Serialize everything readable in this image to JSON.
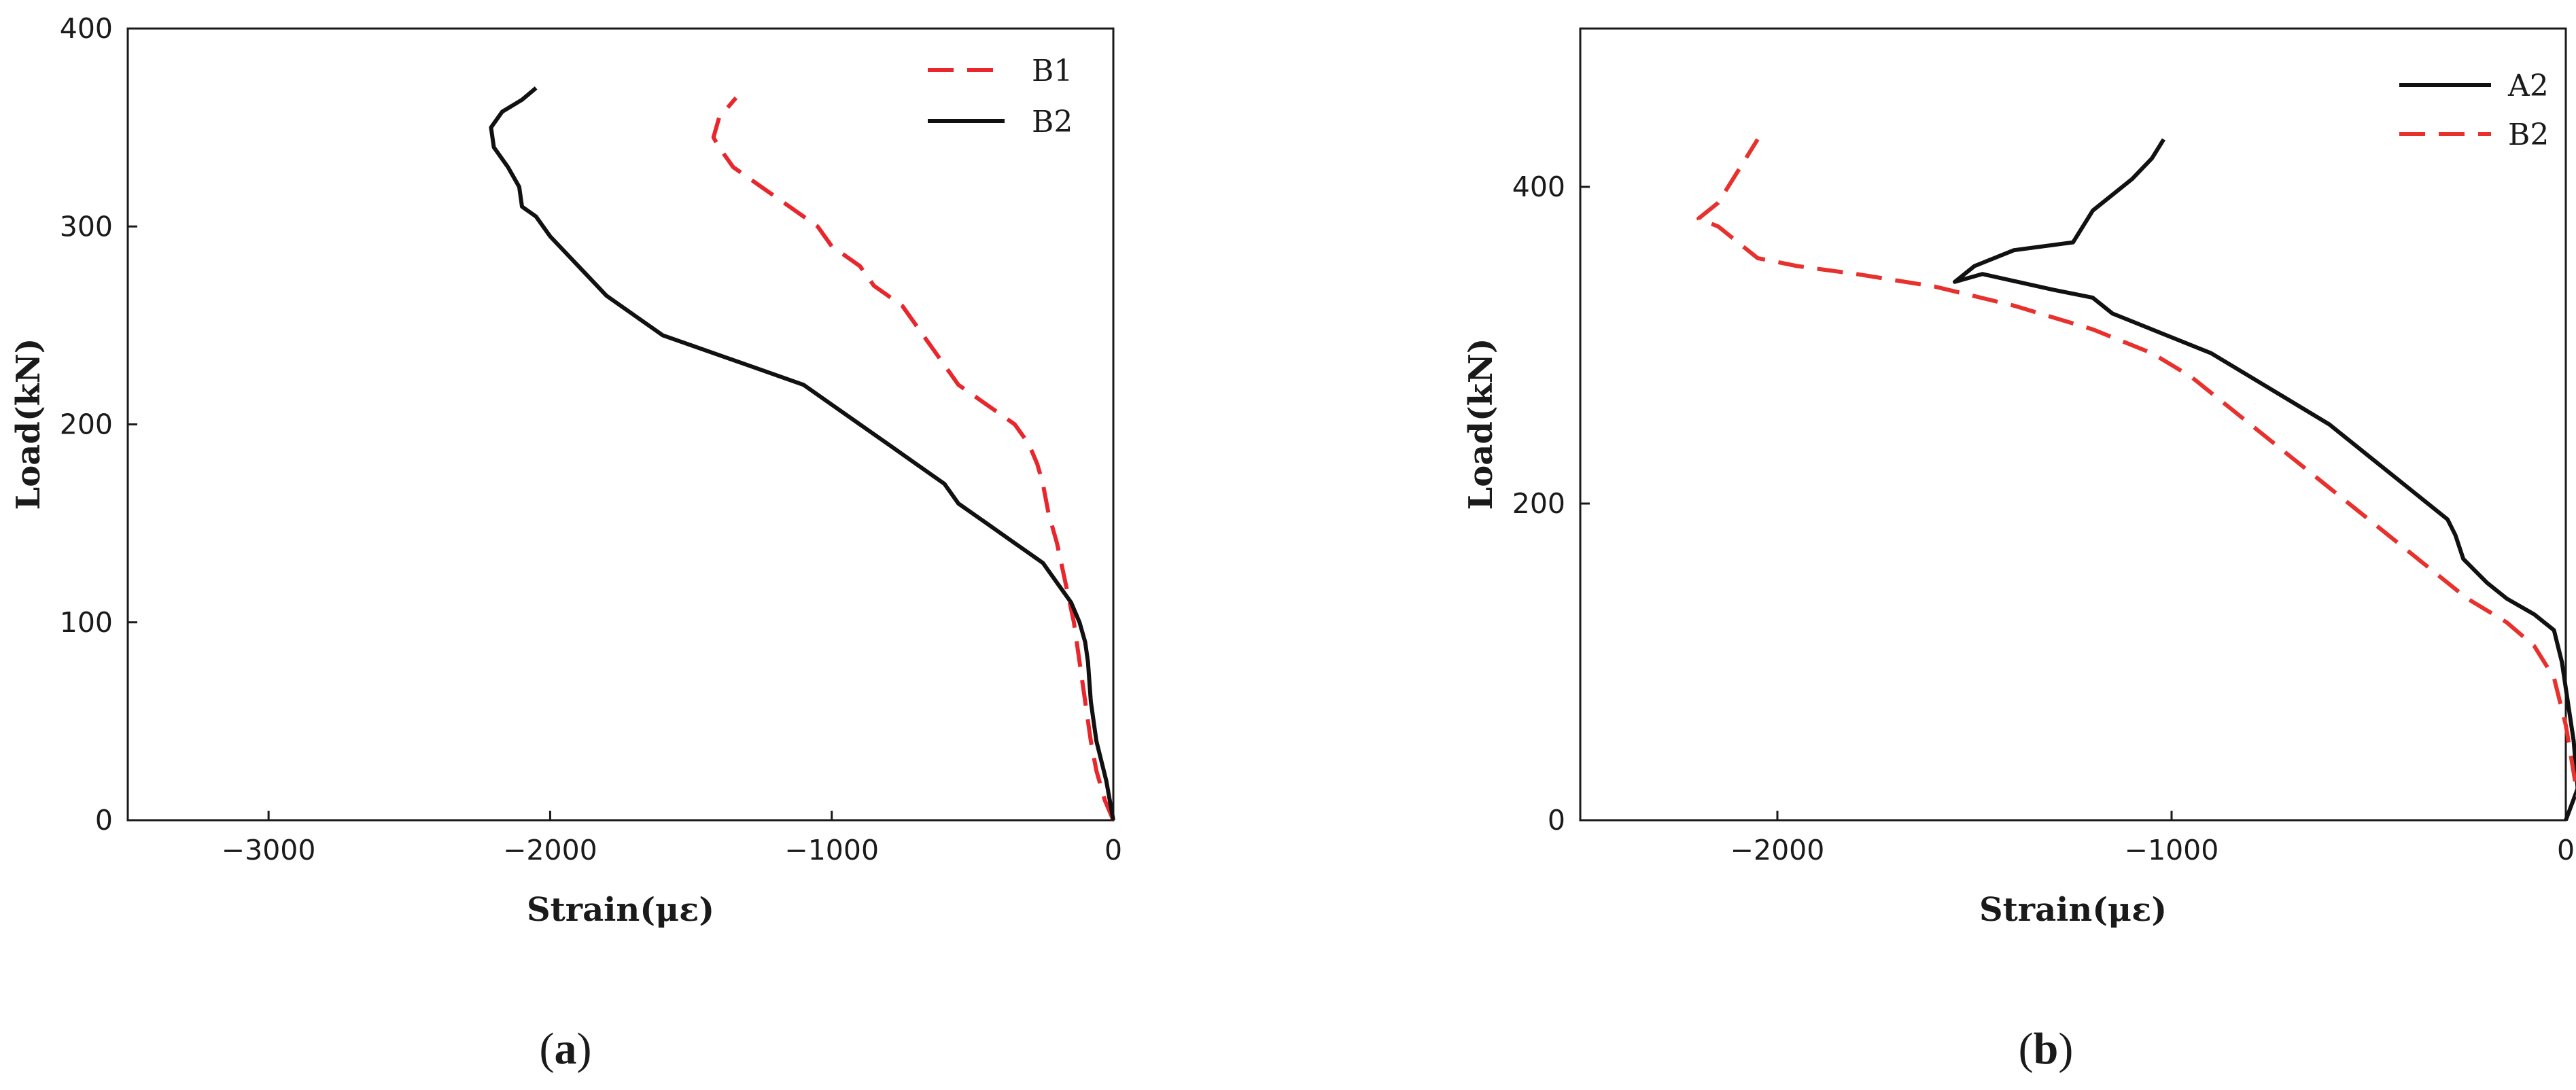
{
  "chart_data": [
    {
      "type": "line",
      "panel_label": "(a)",
      "panel_label_letter": "a",
      "xlabel": "Strain(με)",
      "ylabel": "Load(kN)",
      "xlim": [
        -3500,
        0
      ],
      "ylim": [
        0,
        400
      ],
      "xticks": [
        -3000,
        -2000,
        -1000,
        0
      ],
      "yticks": [
        0,
        100,
        200,
        300,
        400
      ],
      "grid": false,
      "legend_position": "top-right",
      "series": [
        {
          "name": "B1",
          "color": "#e8262c",
          "dash": "dashed",
          "x": [
            0,
            -30,
            -60,
            -80,
            -100,
            -120,
            -140,
            -170,
            -200,
            -230,
            -250,
            -270,
            -300,
            -350,
            -400,
            -450,
            -500,
            -550,
            -600,
            -650,
            -700,
            -750,
            -800,
            -850,
            -900,
            -950,
            -1000,
            -1050,
            -1100,
            -1150,
            -1200,
            -1250,
            -1300,
            -1350,
            -1400,
            -1420,
            -1400,
            -1370,
            -1340
          ],
          "y": [
            0,
            10,
            25,
            40,
            60,
            80,
            100,
            120,
            140,
            155,
            170,
            180,
            190,
            200,
            205,
            210,
            215,
            220,
            230,
            240,
            250,
            260,
            265,
            270,
            280,
            285,
            290,
            300,
            305,
            310,
            315,
            320,
            325,
            330,
            340,
            345,
            355,
            360,
            365
          ]
        },
        {
          "name": "B2",
          "color": "#111111",
          "dash": "solid",
          "x": [
            0,
            -25,
            -60,
            -80,
            -90,
            -100,
            -120,
            -150,
            -200,
            -250,
            -300,
            -350,
            -400,
            -450,
            -500,
            -550,
            -600,
            -700,
            -800,
            -900,
            -1000,
            -1100,
            -1200,
            -1300,
            -1400,
            -1500,
            -1600,
            -1700,
            -1800,
            -1900,
            -2000,
            -2050,
            -2100,
            -2110,
            -2150,
            -2200,
            -2210,
            -2170,
            -2100,
            -2050
          ],
          "y": [
            0,
            20,
            40,
            60,
            80,
            90,
            100,
            110,
            120,
            130,
            135,
            140,
            145,
            150,
            155,
            160,
            170,
            180,
            190,
            200,
            210,
            220,
            225,
            230,
            235,
            240,
            245,
            255,
            265,
            280,
            295,
            305,
            310,
            320,
            330,
            340,
            350,
            358,
            364,
            370
          ]
        }
      ]
    },
    {
      "type": "line",
      "panel_label": "(b)",
      "panel_label_letter": "b",
      "xlabel": "Strain(με)",
      "ylabel": "Load(kN)",
      "xlim": [
        -2500,
        0
      ],
      "ylim": [
        0,
        500
      ],
      "xticks": [
        -2000,
        -1000,
        0
      ],
      "yticks": [
        0,
        200,
        400
      ],
      "grid": false,
      "legend_position": "top-right",
      "series": [
        {
          "name": "A2",
          "color": "#111111",
          "dash": "solid",
          "x": [
            0,
            30,
            20,
            -10,
            -30,
            -80,
            -150,
            -200,
            -260,
            -280,
            -300,
            -350,
            -400,
            -500,
            -600,
            -700,
            -800,
            -900,
            -1000,
            -1100,
            -1150,
            -1200,
            -1300,
            -1480,
            -1550,
            -1500,
            -1400,
            -1250,
            -1200,
            -1150,
            -1100,
            -1050,
            -1020
          ],
          "y": [
            0,
            20,
            50,
            100,
            120,
            130,
            140,
            150,
            165,
            180,
            190,
            200,
            210,
            230,
            250,
            265,
            280,
            295,
            305,
            315,
            320,
            330,
            335,
            345,
            340,
            350,
            360,
            365,
            385,
            395,
            405,
            418,
            430
          ]
        },
        {
          "name": "B2",
          "color": "#e8302c",
          "dash": "dashed",
          "x": [
            40,
            20,
            0,
            -30,
            -80,
            -150,
            -250,
            -350,
            -450,
            -550,
            -650,
            -750,
            -850,
            -950,
            -1050,
            -1200,
            -1400,
            -1600,
            -1800,
            -1950,
            -2050,
            -2100,
            -2150,
            -2200,
            -2150,
            -2100,
            -2050
          ],
          "y": [
            0,
            30,
            60,
            90,
            110,
            125,
            140,
            160,
            180,
            200,
            220,
            240,
            260,
            280,
            295,
            310,
            325,
            337,
            345,
            350,
            355,
            365,
            375,
            380,
            390,
            410,
            430
          ]
        }
      ]
    }
  ]
}
